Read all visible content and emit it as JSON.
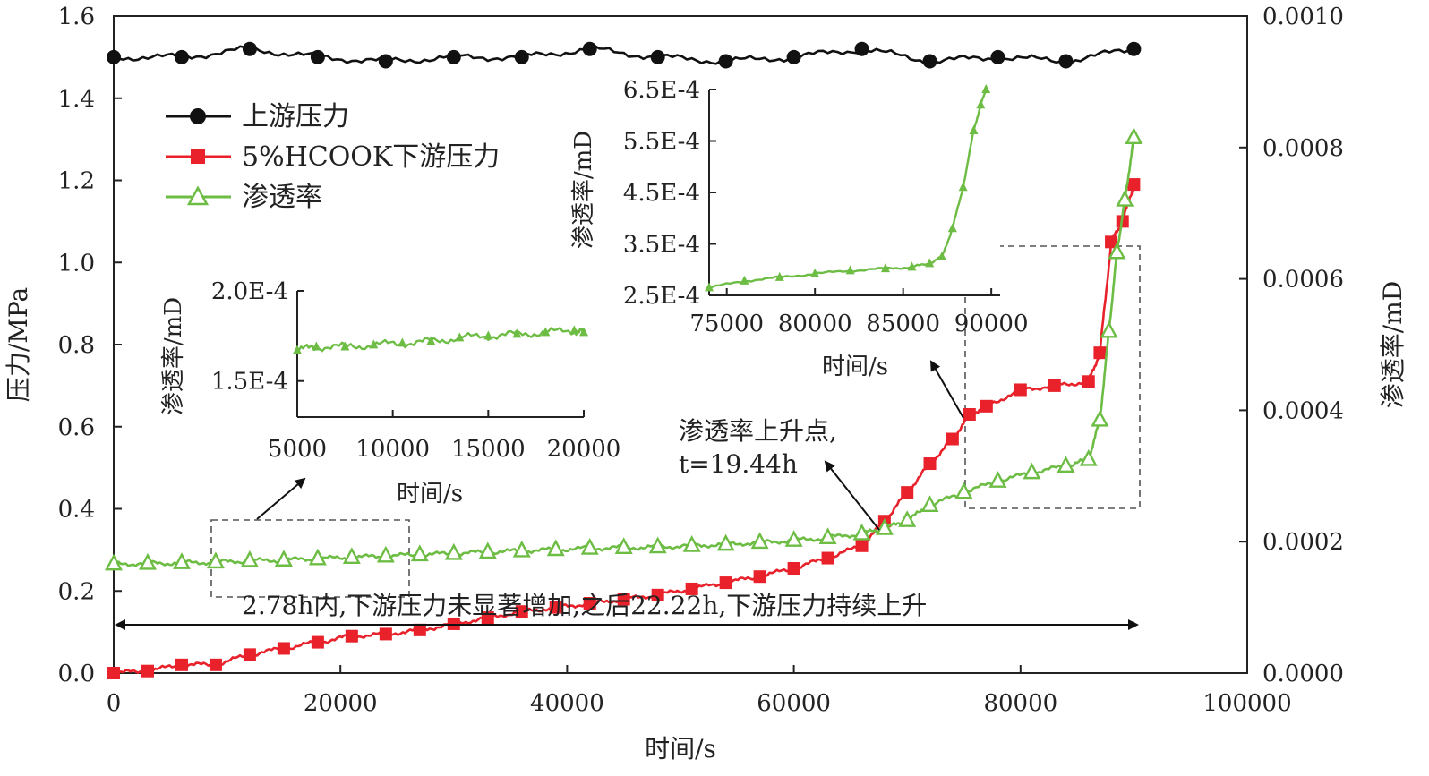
{
  "chart_data": {
    "main": {
      "type": "line",
      "xlabel": "时间/s",
      "ylabel_left": "压力/MPa",
      "ylabel_right": "渗透率/mD",
      "xlim": [
        0,
        100000
      ],
      "ylim_left": [
        0,
        1.6
      ],
      "ylim_right": [
        0,
        0.001
      ],
      "x_ticks": [
        "0",
        "20000",
        "40000",
        "60000",
        "80000",
        "100000"
      ],
      "y_left_ticks": [
        "0.0",
        "0.2",
        "0.4",
        "0.6",
        "0.8",
        "1.0",
        "1.2",
        "1.4",
        "1.6"
      ],
      "y_right_ticks": [
        "0.0000",
        "0.0002",
        "0.0004",
        "0.0006",
        "0.0008",
        "0.0010"
      ],
      "legend_position": "top-left",
      "series": [
        {
          "name": "上游压力",
          "axis": "left",
          "color": "#111111",
          "marker": "circle",
          "x": [
            0,
            6000,
            12000,
            18000,
            24000,
            30000,
            36000,
            42000,
            48000,
            54000,
            60000,
            66000,
            72000,
            78000,
            84000,
            90000
          ],
          "y": [
            1.5,
            1.5,
            1.52,
            1.5,
            1.49,
            1.5,
            1.5,
            1.52,
            1.5,
            1.49,
            1.5,
            1.52,
            1.49,
            1.5,
            1.49,
            1.52
          ]
        },
        {
          "name": "5%HCOOK下游压力",
          "axis": "left",
          "color": "#e8212a",
          "marker": "square",
          "x": [
            0,
            3000,
            6000,
            9000,
            12000,
            15000,
            18000,
            21000,
            24000,
            27000,
            30000,
            33000,
            36000,
            39000,
            42000,
            45000,
            48000,
            51000,
            54000,
            57000,
            60000,
            63000,
            66000,
            68000,
            70000,
            72000,
            74000,
            75500,
            77000,
            80000,
            83000,
            86000,
            87000,
            88000,
            89000,
            90000
          ],
          "y": [
            0.0,
            0.005,
            0.02,
            0.02,
            0.045,
            0.06,
            0.075,
            0.09,
            0.095,
            0.105,
            0.12,
            0.135,
            0.15,
            0.16,
            0.17,
            0.18,
            0.19,
            0.205,
            0.22,
            0.235,
            0.255,
            0.28,
            0.31,
            0.37,
            0.44,
            0.51,
            0.57,
            0.63,
            0.65,
            0.69,
            0.7,
            0.71,
            0.78,
            1.05,
            1.1,
            1.19
          ]
        },
        {
          "name": "渗透率",
          "axis": "right",
          "color": "#6dbd45",
          "marker": "triangle",
          "x": [
            0,
            3000,
            6000,
            9000,
            12000,
            15000,
            18000,
            21000,
            24000,
            27000,
            30000,
            33000,
            36000,
            39000,
            42000,
            45000,
            48000,
            51000,
            54000,
            57000,
            60000,
            63000,
            66000,
            68000,
            70000,
            72000,
            75000,
            78000,
            81000,
            84000,
            86000,
            87000,
            87800,
            88500,
            89200,
            90000
          ],
          "y": [
            0.000166,
            0.000167,
            0.000168,
            0.000169,
            0.000171,
            0.000172,
            0.000174,
            0.000176,
            0.000178,
            0.00018,
            0.000182,
            0.000184,
            0.000186,
            0.000188,
            0.00019,
            0.000191,
            0.000192,
            0.000194,
            0.000196,
            0.000199,
            0.000202,
            0.000206,
            0.000212,
            0.00022,
            0.000232,
            0.000255,
            0.000275,
            0.000292,
            0.000305,
            0.000315,
            0.000325,
            0.000385,
            0.00052,
            0.00064,
            0.00072,
            0.000815
          ]
        }
      ]
    },
    "inset1": {
      "type": "line",
      "xlabel": "时间/s",
      "ylabel": "渗透率/mD",
      "xlim": [
        5000,
        20000
      ],
      "ylim": [
        0.00013,
        0.0002
      ],
      "x_ticks": [
        "5000",
        "10000",
        "15000",
        "20000"
      ],
      "y_ticks": [
        "1.5E-4",
        "2.0E-4"
      ],
      "series": [
        {
          "name": "渗透率",
          "color": "#6dbd45",
          "x": [
            5000,
            6000,
            7500,
            9000,
            10500,
            12000,
            13500,
            15000,
            16500,
            18000,
            19500,
            20000
          ],
          "y": [
            0.000167,
            0.000169,
            0.000169,
            0.00017,
            0.000171,
            0.000172,
            0.000174,
            0.000175,
            0.000176,
            0.000177,
            0.000178,
            0.000177
          ]
        }
      ]
    },
    "inset2": {
      "type": "line",
      "xlabel": "时间/s",
      "ylabel": "渗透率/mD",
      "xlim": [
        74000,
        90500
      ],
      "ylim": [
        0.00025,
        0.00065
      ],
      "x_ticks": [
        "75000",
        "80000",
        "85000",
        "90000"
      ],
      "y_ticks": [
        "2.5E-4",
        "3.5E-4",
        "4.5E-4",
        "5.5E-4",
        "6.5E-4"
      ],
      "series": [
        {
          "name": "渗透率",
          "color": "#6dbd45",
          "x": [
            74000,
            76000,
            78000,
            80000,
            82000,
            84000,
            85500,
            86500,
            87200,
            87800,
            88400,
            89000,
            89400,
            89700
          ],
          "y": [
            0.000265,
            0.000278,
            0.000285,
            0.000292,
            0.000298,
            0.000302,
            0.000305,
            0.000312,
            0.000325,
            0.00038,
            0.00046,
            0.00057,
            0.00062,
            0.00065
          ]
        }
      ]
    },
    "annotations": {
      "rise_point_line1": "渗透率上升点,",
      "rise_point_line2": "t=19.44h",
      "span_text": "2.78h内,下游压力未显著增加,之后22.22h,下游压力持续上升"
    }
  }
}
